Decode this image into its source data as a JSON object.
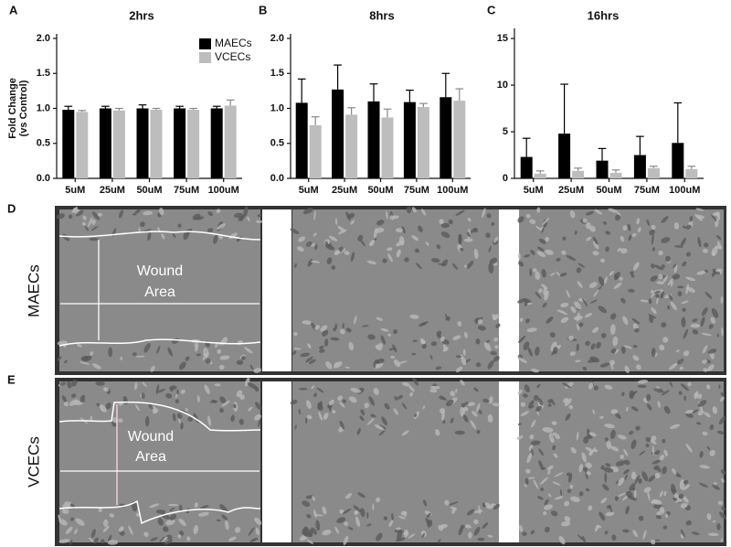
{
  "chart_data": [
    {
      "type": "bar",
      "panel": "A",
      "title": "2hrs",
      "y_label": [
        "Fold Change",
        "(vs Control)"
      ],
      "categories": [
        "5uM",
        "25uM",
        "50uM",
        "75uM",
        "100uM"
      ],
      "series": [
        {
          "name": "MAECs",
          "color": "#000000",
          "values": [
            0.98,
            1.0,
            1.0,
            1.0,
            1.0
          ],
          "errors": [
            0.05,
            0.03,
            0.05,
            0.03,
            0.03
          ]
        },
        {
          "name": "VCECs",
          "color": "#bdbdbd",
          "values": [
            0.95,
            0.97,
            0.98,
            0.98,
            1.04
          ],
          "errors": [
            0.02,
            0.03,
            0.02,
            0.02,
            0.08
          ]
        }
      ],
      "ylim": [
        0,
        2
      ],
      "yticks": [
        {
          "value": 0,
          "label": "0.0"
        },
        0.5,
        {
          "value": 1,
          "label": "1.0"
        },
        1.5,
        {
          "value": 2,
          "label": "2.0"
        }
      ],
      "legend": "top-right"
    },
    {
      "type": "bar",
      "panel": "B",
      "title": "8hrs",
      "categories": [
        "5uM",
        "25uM",
        "50uM",
        "75uM",
        "100uM"
      ],
      "series": [
        {
          "color": "#000000",
          "values": [
            1.08,
            1.27,
            1.1,
            1.09,
            1.16
          ],
          "errors": [
            0.34,
            0.35,
            0.25,
            0.17,
            0.34
          ]
        },
        {
          "color": "#bdbdbd",
          "values": [
            0.76,
            0.91,
            0.87,
            1.02,
            1.11
          ],
          "errors": [
            0.12,
            0.1,
            0.12,
            0.05,
            0.17
          ]
        }
      ],
      "ylim": [
        0,
        2
      ],
      "yticks": [
        {
          "value": 0,
          "label": "0.0"
        },
        0.5,
        {
          "value": 1,
          "label": "1.0"
        },
        1.5,
        {
          "value": 2,
          "label": "2.0"
        }
      ]
    },
    {
      "type": "bar",
      "panel": "C",
      "title": "16hrs",
      "categories": [
        "5uM",
        "25uM",
        "50uM",
        "75uM",
        "100uM"
      ],
      "series": [
        {
          "color": "#000000",
          "values": [
            2.3,
            4.8,
            1.9,
            2.5,
            3.8
          ],
          "errors": [
            2.0,
            5.3,
            1.3,
            2.0,
            4.3
          ]
        },
        {
          "color": "#bdbdbd",
          "values": [
            0.5,
            0.8,
            0.6,
            1.1,
            1.0
          ],
          "errors": [
            0.3,
            0.3,
            0.3,
            0.2,
            0.3
          ]
        }
      ],
      "ylim": [
        0,
        15.6
      ],
      "yticks": [
        0,
        5,
        10,
        15
      ]
    }
  ],
  "image_panels": [
    {
      "label": "D",
      "row_label": "MAECs",
      "annotation": [
        "Wound",
        "Area"
      ]
    },
    {
      "label": "E",
      "row_label": "VCECs",
      "annotation": [
        "Wound",
        "Area"
      ]
    }
  ]
}
